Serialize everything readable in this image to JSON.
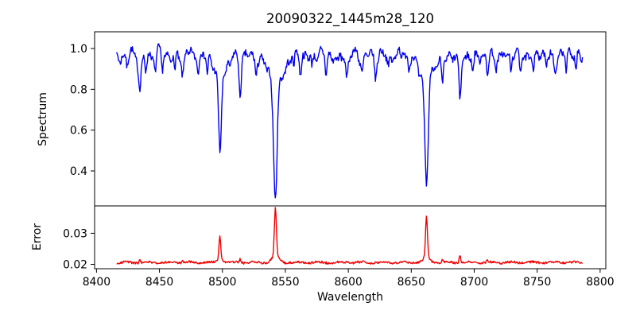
{
  "chart_data": {
    "type": "line",
    "title": "20090322_1445m28_120",
    "xlabel": "Wavelength",
    "xlim": [
      8398.5,
      8804.5
    ],
    "xticks": [
      {
        "v": 8400,
        "label": "8400"
      },
      {
        "v": 8450,
        "label": "8450"
      },
      {
        "v": 8500,
        "label": "8500"
      },
      {
        "v": 8550,
        "label": "8550"
      },
      {
        "v": 8600,
        "label": "8600"
      },
      {
        "v": 8650,
        "label": "8650"
      },
      {
        "v": 8700,
        "label": "8700"
      },
      {
        "v": 8750,
        "label": "8750"
      },
      {
        "v": 8800,
        "label": "8800"
      }
    ],
    "data_x_start": 8416,
    "data_x_end": 8786,
    "data_x_step": 0.5,
    "axis_color": "#000000",
    "background_color": "#ffffff",
    "panels": [
      {
        "name": "spectrum",
        "ylabel": "Spectrum",
        "line_color": "#0000ee",
        "ylim": [
          0.2285,
          1.082
        ],
        "yticks": [
          {
            "v": 1.0,
            "label": "1.0"
          },
          {
            "v": 0.8,
            "label": "0.8"
          },
          {
            "v": 0.6,
            "label": "0.6"
          },
          {
            "v": 0.4,
            "label": "0.4"
          }
        ],
        "continuum_level": 0.968,
        "noise_amplitude": 0.017,
        "smooth_variation": [
          [
            0.016,
            6.8
          ],
          [
            0.012,
            11.9
          ],
          [
            0.009,
            21.7
          ],
          [
            0.007,
            3.66
          ]
        ],
        "absorption_lines": [
          {
            "center": 8424.2,
            "depth": 0.07,
            "sigma": 0.7
          },
          {
            "center": 8434.5,
            "depth": 0.15,
            "sigma": 0.9,
            "wing_depth": 0.02,
            "wing_sigma": 2.5
          },
          {
            "center": 8439.0,
            "depth": 0.07,
            "sigma": 0.6
          },
          {
            "center": 8446.6,
            "depth": 0.08,
            "sigma": 0.7
          },
          {
            "center": 8452.3,
            "depth": 0.07,
            "sigma": 0.6
          },
          {
            "center": 8462.1,
            "depth": 0.08,
            "sigma": 0.7
          },
          {
            "center": 8468.4,
            "depth": 0.1,
            "sigma": 0.8,
            "wing_depth": 0.01,
            "wing_sigma": 2.0
          },
          {
            "center": 8481.0,
            "depth": 0.06,
            "sigma": 0.6
          },
          {
            "center": 8488.0,
            "depth": 0.07,
            "sigma": 0.6
          },
          {
            "center": 8498.0,
            "depth": 0.39,
            "sigma": 1.1,
            "wing_depth": 0.1,
            "wing_sigma": 5.0
          },
          {
            "center": 8514.1,
            "depth": 0.16,
            "sigma": 0.9,
            "wing_depth": 0.02,
            "wing_sigma": 2.5
          },
          {
            "center": 8526.7,
            "depth": 0.07,
            "sigma": 0.6
          },
          {
            "center": 8542.1,
            "depth": 0.57,
            "sigma": 1.4,
            "wing_depth": 0.13,
            "wing_sigma": 6.5
          },
          {
            "center": 8556.8,
            "depth": 0.06,
            "sigma": 0.6
          },
          {
            "center": 8562.1,
            "depth": 0.08,
            "sigma": 0.7
          },
          {
            "center": 8571.0,
            "depth": 0.06,
            "sigma": 0.6
          },
          {
            "center": 8582.3,
            "depth": 0.09,
            "sigma": 0.7,
            "wing_depth": 0.01,
            "wing_sigma": 2.0
          },
          {
            "center": 8592.0,
            "depth": 0.06,
            "sigma": 0.6
          },
          {
            "center": 8598.8,
            "depth": 0.11,
            "sigma": 0.8,
            "wing_depth": 0.015,
            "wing_sigma": 2.0
          },
          {
            "center": 8611.0,
            "depth": 0.08,
            "sigma": 0.7
          },
          {
            "center": 8621.6,
            "depth": 0.1,
            "sigma": 0.8,
            "wing_depth": 0.01,
            "wing_sigma": 2.0
          },
          {
            "center": 8632.0,
            "depth": 0.06,
            "sigma": 0.6
          },
          {
            "center": 8648.0,
            "depth": 0.07,
            "sigma": 0.7
          },
          {
            "center": 8662.1,
            "depth": 0.52,
            "sigma": 1.3,
            "wing_depth": 0.12,
            "wing_sigma": 5.5
          },
          {
            "center": 8674.7,
            "depth": 0.12,
            "sigma": 0.8,
            "wing_depth": 0.015,
            "wing_sigma": 2.0
          },
          {
            "center": 8688.6,
            "depth": 0.2,
            "sigma": 0.9,
            "wing_depth": 0.03,
            "wing_sigma": 2.5
          },
          {
            "center": 8699.0,
            "depth": 0.08,
            "sigma": 0.7
          },
          {
            "center": 8710.4,
            "depth": 0.1,
            "sigma": 0.8,
            "wing_depth": 0.01,
            "wing_sigma": 2.0
          },
          {
            "center": 8717.0,
            "depth": 0.06,
            "sigma": 0.6
          },
          {
            "center": 8729.0,
            "depth": 0.08,
            "sigma": 0.7
          },
          {
            "center": 8736.5,
            "depth": 0.08,
            "sigma": 0.7
          },
          {
            "center": 8747.0,
            "depth": 0.08,
            "sigma": 0.7
          },
          {
            "center": 8757.0,
            "depth": 0.07,
            "sigma": 0.6
          },
          {
            "center": 8764.0,
            "depth": 0.08,
            "sigma": 0.7
          },
          {
            "center": 8773.0,
            "depth": 0.07,
            "sigma": 0.6
          },
          {
            "center": 8781.0,
            "depth": 0.06,
            "sigma": 0.6
          }
        ]
      },
      {
        "name": "error",
        "ylabel": "Error",
        "line_color": "#ee0000",
        "ylim": [
          0.0186,
          0.0388
        ],
        "yticks": [
          {
            "v": 0.03,
            "label": "0.03"
          },
          {
            "v": 0.02,
            "label": "0.02"
          }
        ],
        "baseline_level": 0.0206,
        "noise_amplitude": 0.00035,
        "smooth_variation": [
          [
            0.0002,
            17.0
          ]
        ],
        "peaks": [
          {
            "center": 8434.5,
            "height": 0.0009,
            "sigma": 0.6
          },
          {
            "center": 8468.4,
            "height": 0.0005,
            "sigma": 0.5
          },
          {
            "center": 8498.0,
            "height": 0.0077,
            "sigma": 0.7,
            "wing_height": 0.001,
            "wing_sigma": 2.2
          },
          {
            "center": 8514.1,
            "height": 0.0012,
            "sigma": 0.6
          },
          {
            "center": 8542.1,
            "height": 0.0155,
            "sigma": 0.8,
            "wing_height": 0.002,
            "wing_sigma": 3.0
          },
          {
            "center": 8598.8,
            "height": 0.0006,
            "sigma": 0.5
          },
          {
            "center": 8621.6,
            "height": 0.0005,
            "sigma": 0.5
          },
          {
            "center": 8662.1,
            "height": 0.0132,
            "sigma": 0.75,
            "wing_height": 0.0016,
            "wing_sigma": 2.6
          },
          {
            "center": 8674.7,
            "height": 0.0008,
            "sigma": 0.5
          },
          {
            "center": 8688.6,
            "height": 0.0026,
            "sigma": 0.6
          },
          {
            "center": 8710.4,
            "height": 0.0005,
            "sigma": 0.5
          }
        ]
      }
    ]
  }
}
